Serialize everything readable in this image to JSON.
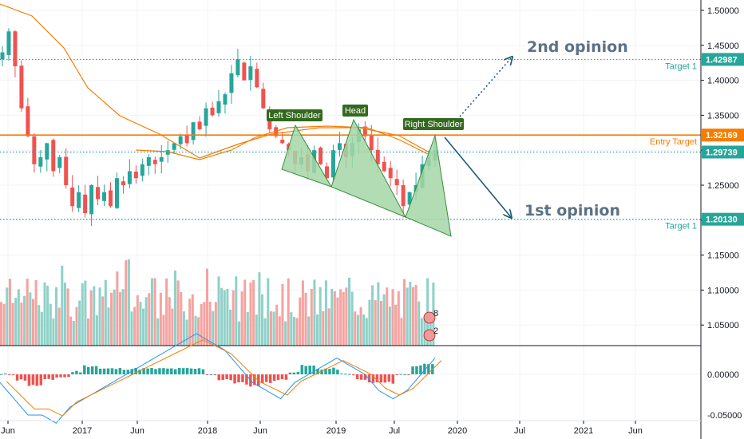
{
  "chart_data": {
    "type": "candlestick",
    "axis": {
      "price_ticks": [
        "1.50000",
        "1.45000",
        "1.40000",
        "1.35000",
        "1.30000",
        "1.25000",
        "1.20000",
        "1.15000",
        "1.10000",
        "1.05000"
      ],
      "macd_ticks": [
        "0.00000",
        "-0.05000"
      ],
      "time_labels": [
        "Jun",
        "2017",
        "Jun",
        "2018",
        "Jun",
        "2019",
        "Jul",
        "2020",
        "Jul",
        "2021",
        "Jun"
      ],
      "ylim": [
        1.02,
        1.515
      ]
    },
    "levels": [
      {
        "name": "target-upper",
        "price": 1.42987,
        "label": "Target 1",
        "badge": "1.42987",
        "color": "#26a69a",
        "style": "dotted"
      },
      {
        "name": "entry",
        "price": 1.32169,
        "label": "Entry Target",
        "badge": "1.32169",
        "color": "#f57c00",
        "style": "solid"
      },
      {
        "name": "current",
        "price": 1.29739,
        "label": "",
        "badge": "1.29739",
        "color": "#26a69a",
        "style": "dotted"
      },
      {
        "name": "target-lower",
        "price": 1.2013,
        "label": "Target 1",
        "badge": "1.20130",
        "color": "#26a69a",
        "style": "dotted"
      }
    ],
    "close": [
      1.44,
      1.47,
      1.42,
      1.36,
      1.32,
      1.28,
      1.29,
      1.31,
      1.27,
      1.29,
      1.25,
      1.22,
      1.24,
      1.21,
      1.25,
      1.23,
      1.24,
      1.22,
      1.26,
      1.25,
      1.27,
      1.26,
      1.28,
      1.29,
      1.28,
      1.29,
      1.3,
      1.31,
      1.32,
      1.31,
      1.34,
      1.33,
      1.36,
      1.35,
      1.37,
      1.38,
      1.41,
      1.43,
      1.4,
      1.42,
      1.39,
      1.36,
      1.33,
      1.32,
      1.31,
      1.3,
      1.28,
      1.29,
      1.27,
      1.3,
      1.28,
      1.26,
      1.3,
      1.31,
      1.29,
      1.31,
      1.33,
      1.32,
      1.3,
      1.28,
      1.27,
      1.26,
      1.25,
      1.22,
      1.24,
      1.25,
      1.28,
      1.29,
      1.3
    ],
    "overlays": {
      "ma_slow_color": "#f57c00",
      "ma_fast_color": "#f57c00"
    },
    "macd": [
      -0.01,
      -0.03,
      -0.05,
      -0.05,
      -0.06,
      -0.04,
      -0.03,
      -0.02,
      -0.01,
      0.0,
      0.01,
      0.02,
      0.03,
      0.04,
      0.05,
      0.04,
      0.03,
      0.01,
      -0.01,
      -0.02,
      -0.03,
      -0.01,
      0.0,
      0.01,
      0.02,
      0.01,
      0.0,
      -0.02,
      -0.03,
      -0.02,
      0.0,
      0.02
    ]
  },
  "pattern": {
    "left_shoulder": "Left Shoulder",
    "head": "Head",
    "right_shoulder": "Right Shoulder"
  },
  "annotations": {
    "opinion1": "1st opinion",
    "opinion2": "2nd opinion"
  },
  "volume_badges": [
    "8",
    "2"
  ],
  "colors": {
    "up": "#26a69a",
    "down": "#ef5350",
    "orange": "#f57c00",
    "arrow": "#1e5a78",
    "pattern_fill": "#a5d6a7"
  }
}
